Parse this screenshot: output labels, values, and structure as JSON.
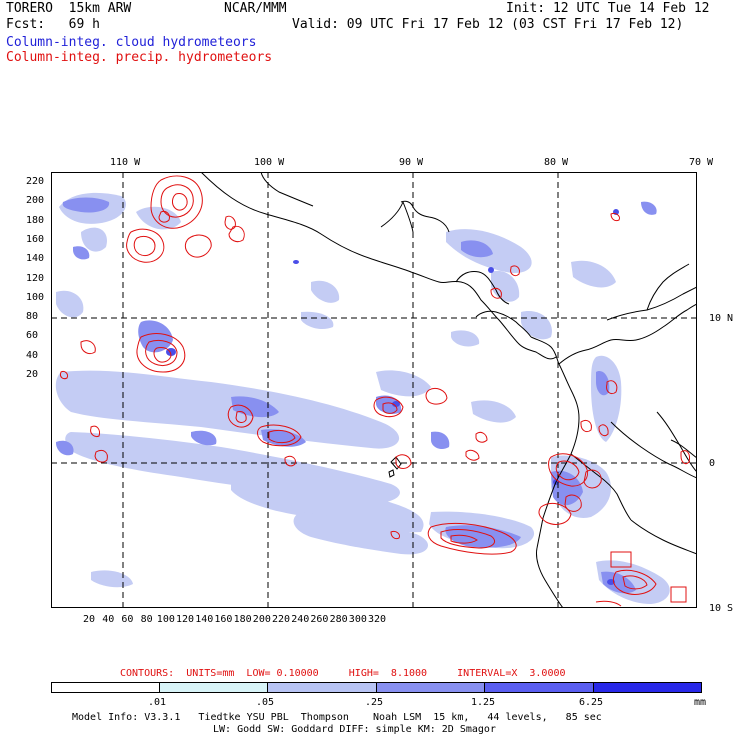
{
  "header": {
    "model": "TORERO  15km ARW",
    "org": "NCAR/MMM",
    "init": "Init: 12 UTC Tue 14 Feb 12",
    "fcst": "Fcst:   69 h",
    "valid": "Valid: 09 UTC Fri 17 Feb 12 (03 CST Fri 17 Feb 12)",
    "field1": "Column-integ. cloud hydrometeors",
    "field2": "Column-integ. precip. hydrometeors"
  },
  "axes": {
    "lon_labels": [
      "110 W",
      "100 W",
      "90 W",
      "80 W",
      "70 W"
    ],
    "lat_labels": [
      "10 N",
      "0",
      "10 S"
    ],
    "y_ticks": [
      "220",
      "200",
      "180",
      "160",
      "140",
      "120",
      "100",
      "80",
      "60",
      "40",
      "20"
    ],
    "x_ticks": [
      "20",
      "40",
      "60",
      "80",
      "100",
      "120",
      "140",
      "160",
      "180",
      "200",
      "220",
      "240",
      "260",
      "280",
      "300",
      "320"
    ]
  },
  "contours": "CONTOURS:  UNITS=mm  LOW= 0.10000     HIGH=  8.1000     INTERVAL=X  3.0000",
  "colorbar": {
    "labels": [
      ".01",
      ".05",
      ".25",
      "1.25",
      "6.25"
    ],
    "unit": "mm",
    "colors": [
      "#ffffff",
      "#d8f4f8",
      "#b8c4f4",
      "#8890f0",
      "#5a5ef0",
      "#2828e8"
    ]
  },
  "footer": {
    "line1": "Model Info: V3.3.1   Tiedtke YSU PBL  Thompson    Noah LSM  15 km,   44 levels,   85 sec",
    "line2": "LW: Godd SW: Goddard DIFF: simple KM: 2D Smagor"
  },
  "colors": {
    "cloud_light": "#c4ccf4",
    "cloud_mid": "#8890f0",
    "cloud_dark": "#4a4ee8",
    "precip": "#e01010",
    "coast": "#000000"
  }
}
